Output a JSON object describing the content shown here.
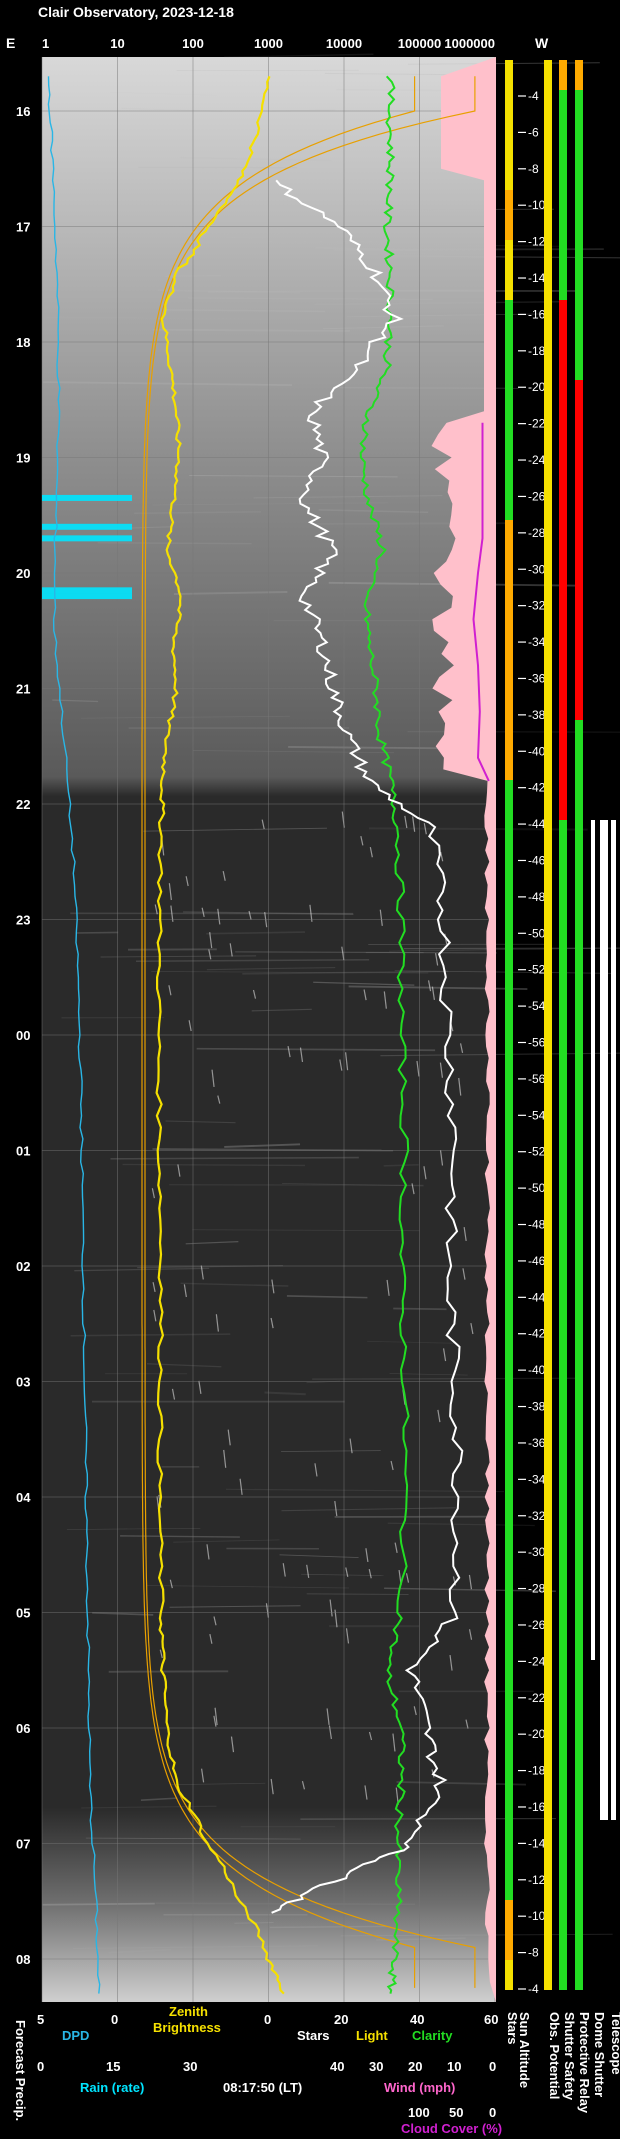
{
  "title": "Clair Observatory, 2023-12-18",
  "compass": {
    "east": "E",
    "west": "W"
  },
  "top_axis": {
    "ticks": [
      "1",
      "10",
      "100",
      "1000",
      "10000",
      "100000",
      "1000000"
    ]
  },
  "time_ticks": [
    "16",
    "17",
    "18",
    "19",
    "20",
    "21",
    "22",
    "23",
    "00",
    "01",
    "02",
    "03",
    "04",
    "05",
    "06",
    "07",
    "08"
  ],
  "sun_altitude_labels": [
    "-4",
    "-6",
    "-8",
    "-10",
    "-12",
    "-14",
    "-16",
    "-18",
    "-20",
    "-22",
    "-24",
    "-26",
    "-28",
    "-30",
    "-32",
    "-34",
    "-36",
    "-38",
    "-40",
    "-42",
    "-44",
    "-46",
    "-48",
    "-50",
    "-52",
    "-54",
    "-56",
    "-56",
    "-54",
    "-52",
    "-50",
    "-48",
    "-46",
    "-44",
    "-42",
    "-40",
    "-38",
    "-36",
    "-34",
    "-32",
    "-30",
    "-28",
    "-26",
    "-24",
    "-22",
    "-20",
    "-18",
    "-16",
    "-14",
    "-12",
    "-10",
    "-8",
    "-4"
  ],
  "bottom": {
    "dpd_scale": [
      "5",
      "0"
    ],
    "dpd_label": "DPD",
    "zenith_label_line1": "Zenith",
    "zenith_label_line2": "Brightness",
    "stars_scale": [
      "0",
      "20",
      "40",
      "60"
    ],
    "stars_label": "Stars",
    "light_label": "Light",
    "clarity_label": "Clarity",
    "rain_scale": [
      "0",
      "15",
      "30"
    ],
    "rain_label": "Rain (rate)",
    "timestamp": "08:17:50 (LT)",
    "wind_scale": [
      "40",
      "30",
      "20",
      "10",
      "0"
    ],
    "wind_label": "Wind (mph)",
    "cloud_scale": [
      "100",
      "50",
      "0"
    ],
    "cloud_label": "Cloud Cover (%)",
    "forecast_label": "Forecast Precip.",
    "right_labels": [
      "Stars",
      "Sun Altitude",
      "Obs. Potential",
      "Shutter Safety",
      "Protective Relay",
      "Dome Shutter",
      "Telescope"
    ]
  },
  "colors": {
    "dpd": "#29b6e6",
    "rain": "#00e5ff",
    "zenith": "#f5e000",
    "sun_curve": "#e8a000",
    "stars": "#ffffff",
    "clarity": "#22dd22",
    "cloud": "#d020d0",
    "cloud_fill": "#ffc0cb",
    "ok": "#22dd22",
    "warn": "#ffaa00",
    "bad": "#ff0000",
    "caution": "#f5e000"
  },
  "chart_data": {
    "type": "line",
    "title": "Clair Observatory, 2023-12-18",
    "x_axis": "local time",
    "time_range": [
      "15:40",
      "08:17:50"
    ],
    "top_scale_log": [
      1,
      1000000
    ],
    "series": [
      {
        "name": "Zenith Brightness",
        "hours": [
          15.7,
          16.2,
          16.6,
          17.0,
          17.4,
          17.8,
          18.2,
          18.6,
          19.0,
          19.4,
          19.8,
          20.2,
          20.6,
          21.0,
          21.4,
          21.8,
          22.2,
          23.0,
          24.0,
          25.0,
          26.0,
          27.0,
          28.0,
          29.0,
          29.5,
          30.0,
          30.5,
          31.0,
          31.5,
          32.0,
          32.3
        ],
        "values": [
          1000,
          700,
          400,
          150,
          60,
          40,
          50,
          60,
          65,
          55,
          45,
          70,
          55,
          60,
          45,
          40,
          38,
          36,
          35,
          36,
          38,
          37,
          36,
          38,
          40,
          45,
          60,
          150,
          400,
          1000,
          1600
        ]
      },
      {
        "name": "Stars",
        "hours": [
          16.6,
          17.0,
          17.4,
          17.8,
          18.2,
          18.6,
          19.0,
          19.4,
          19.8,
          20.2,
          20.6,
          21.0,
          21.4,
          21.8,
          22.2,
          23.0,
          24.0,
          25.0,
          26.0,
          27.0,
          28.0,
          29.0,
          29.5,
          30.0,
          30.5,
          31.0,
          31.3,
          31.6
        ],
        "values": [
          1,
          20,
          30,
          35,
          25,
          12,
          15,
          10,
          18,
          10,
          15,
          18,
          22,
          28,
          45,
          49,
          50,
          52,
          50,
          52,
          53,
          52,
          40,
          44,
          48,
          40,
          20,
          1
        ]
      },
      {
        "name": "Clarity",
        "hours": [
          15.7,
          16.2,
          16.6,
          17.0,
          17.4,
          17.8,
          18.2,
          18.6,
          19.0,
          19.4,
          19.8,
          20.2,
          20.6,
          21.0,
          21.4,
          21.8,
          22.2,
          23.0,
          24.0,
          25.0,
          26.0,
          27.0,
          28.0,
          29.0,
          29.5,
          30.0,
          30.5,
          31.0,
          31.5,
          32.0,
          32.3
        ],
        "values": [
          34,
          34,
          34,
          33,
          34,
          34,
          33,
          28,
          26,
          28,
          32,
          27,
          28,
          30,
          31,
          34,
          36,
          37,
          37,
          38,
          37,
          38,
          38,
          37,
          33,
          37,
          37,
          36,
          36,
          35,
          34
        ]
      },
      {
        "name": "Cloud Cover (%)",
        "hours": [
          18.7,
          19.0,
          19.4,
          19.7,
          20.0,
          20.4,
          20.8,
          21.2,
          21.6,
          21.8
        ],
        "values": [
          15,
          15,
          15,
          15,
          20,
          25,
          20,
          18,
          20,
          8
        ]
      },
      {
        "name": "DPD",
        "hours": [
          15.7,
          16.5,
          17.5,
          18.5,
          19.5,
          20.5,
          21.5,
          22.5,
          23.5,
          24.5,
          25.5,
          26.5,
          27.5,
          28.5,
          29.5,
          30.5,
          31.5,
          32.3
        ],
        "values": [
          4.7,
          4.4,
          4.1,
          4.0,
          4.2,
          4.3,
          3.6,
          3.0,
          2.7,
          2.5,
          2.4,
          2.3,
          2.2,
          2.1,
          2.0,
          1.9,
          1.5,
          1.3
        ]
      }
    ],
    "rain_events_hours": [
      19.35,
      19.6,
      19.7,
      20.15,
      20.2
    ]
  }
}
